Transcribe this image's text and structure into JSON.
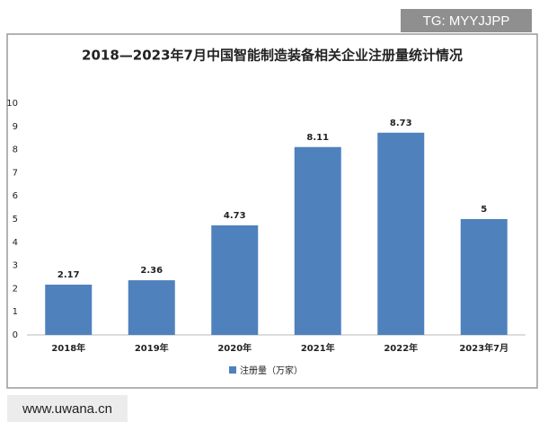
{
  "chart_data": {
    "type": "bar",
    "title": "2018—2023年7月中国智能制造装备相关企业注册量统计情况",
    "categories": [
      "2018年",
      "2019年",
      "2020年",
      "2021年",
      "2022年",
      "2023年7月"
    ],
    "series": [
      {
        "name": "注册量（万家）",
        "color": "#4f81bd",
        "values": [
          2.17,
          2.36,
          4.73,
          8.11,
          8.73,
          5
        ]
      }
    ],
    "ylim": [
      0,
      10
    ],
    "yticks": [
      0,
      1,
      2,
      3,
      4,
      5,
      6,
      7,
      8,
      9,
      10
    ],
    "grid": false,
    "legend": "bottom"
  },
  "overlays": {
    "top_right": "TG: MYYJJPP",
    "bottom_left": "www.uwana.cn"
  }
}
